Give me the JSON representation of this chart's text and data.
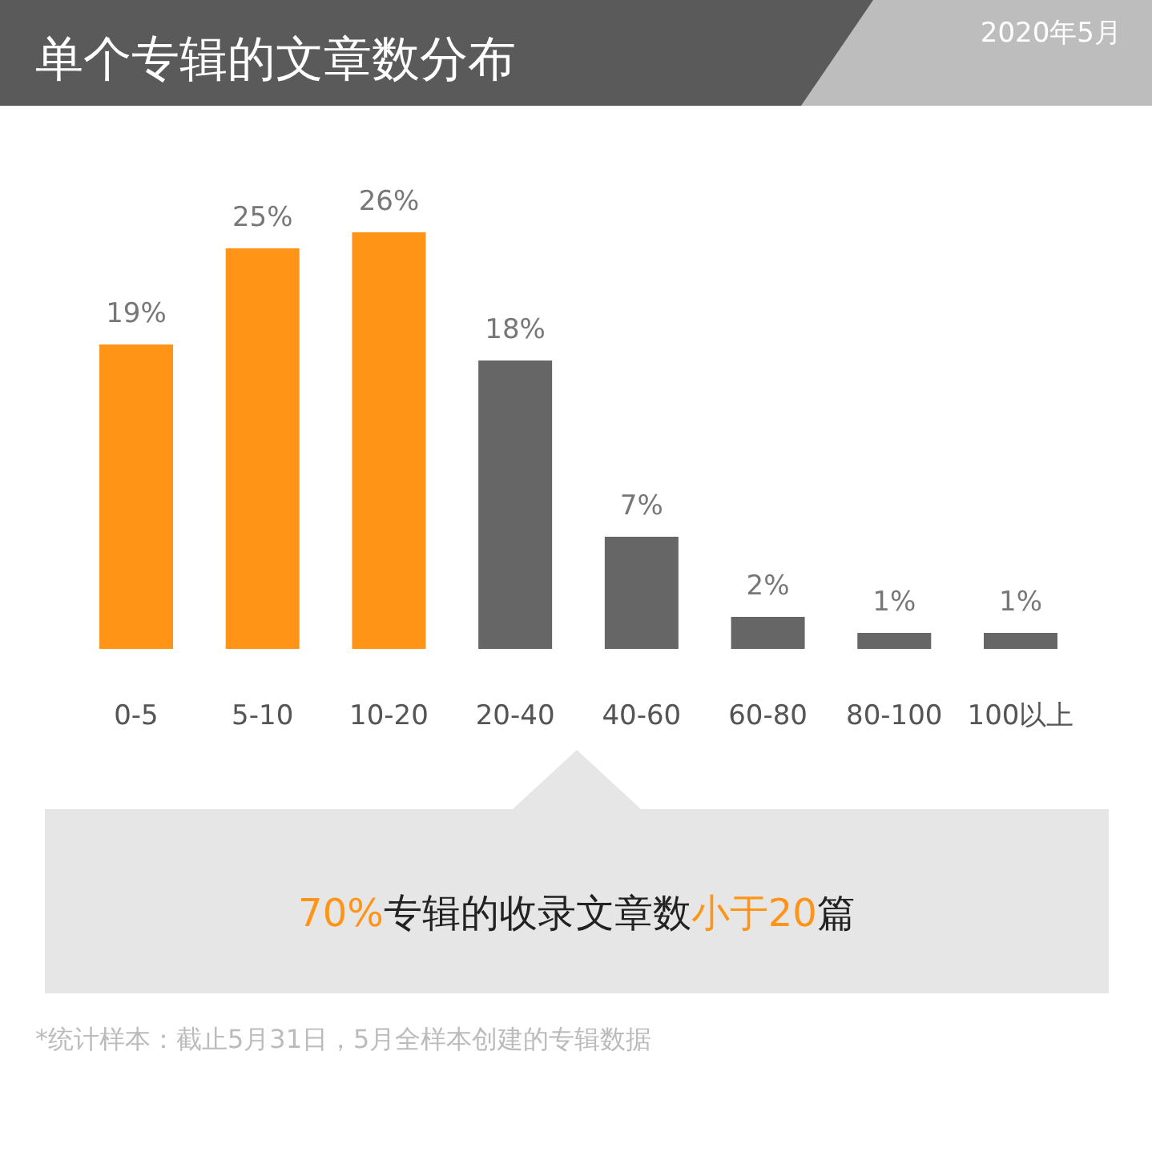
{
  "chart_data": {
    "type": "bar",
    "title": "单个专辑的文章数分布",
    "subtitle": "2020年5月",
    "categories": [
      "0-5",
      "5-10",
      "10-20",
      "20-40",
      "40-60",
      "60-80",
      "80-100",
      "100以上"
    ],
    "values": [
      19,
      25,
      26,
      18,
      7,
      2,
      1,
      1
    ],
    "colors": [
      "#ff9416",
      "#ff9416",
      "#ff9416",
      "#666666",
      "#666666",
      "#666666",
      "#666666",
      "#666666"
    ],
    "value_labels": [
      "19%",
      "25%",
      "26%",
      "18%",
      "7%",
      "2%",
      "1%",
      "1%"
    ],
    "annotations": [
      "70%",
      "专辑的收录文章数",
      "小于20",
      "篇",
      "*统计样本：截止5月31日，5月全样本创建的专辑数据"
    ]
  }
}
